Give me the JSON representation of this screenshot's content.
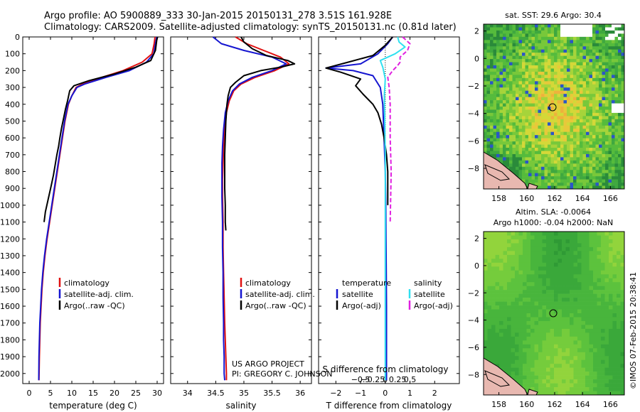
{
  "header": {
    "line1": "Argo profile: AO 5900889_333 30-Jan-2015 20150131_278 3.51S 161.928E",
    "line2": "Climatology: CARS2009. Satellite-adjusted climatology: synTS_20150131.nc (0.81d later)"
  },
  "depth_ticks": [
    "0",
    "100",
    "200",
    "300",
    "400",
    "500",
    "600",
    "700",
    "800",
    "900",
    "1000",
    "1100",
    "1200",
    "1300",
    "1400",
    "1500",
    "1600",
    "1700",
    "1800",
    "1900",
    "2000"
  ],
  "colors": {
    "climatology": "#e01010",
    "satellite": "#1515d0",
    "argo": "#000000",
    "sat_salinity": "#30e0f0",
    "argo_salinity": "#e020e0"
  },
  "chart_data": [
    {
      "type": "line",
      "panel": "temperature",
      "xlabel": "temperature (deg C)",
      "xlim": [
        -1.5,
        31.5
      ],
      "ylim": [
        2060,
        0
      ],
      "xticks": [
        0,
        5,
        10,
        15,
        20,
        25,
        30
      ],
      "legend": [
        "climatology",
        "satellite-adj. clim.",
        "Argo(..raw -QC)"
      ],
      "series": [
        {
          "name": "climatology",
          "x": [
            29.5,
            29.3,
            28.8,
            26.5,
            22,
            17,
            12.5,
            11,
            10,
            9.2,
            8.4,
            7.8,
            7.2,
            6.6,
            6,
            5.4,
            4.8,
            4.2,
            3.7,
            3.3,
            3,
            2.8,
            2.6,
            2.5,
            2.4,
            2.3
          ],
          "y": [
            0,
            40,
            100,
            150,
            200,
            240,
            280,
            300,
            350,
            400,
            500,
            600,
            700,
            800,
            900,
            1000,
            1100,
            1200,
            1300,
            1400,
            1500,
            1600,
            1700,
            1800,
            1900,
            2040
          ]
        },
        {
          "name": "satellite-adj. clim.",
          "x": [
            29.9,
            29.6,
            29.2,
            27.5,
            23.5,
            18,
            13,
            11.2,
            10,
            9.1,
            8.3,
            7.7,
            7.1,
            6.5,
            5.9,
            5.3,
            4.7,
            4.1,
            3.6,
            3.2,
            2.9,
            2.7,
            2.5,
            2.4,
            2.3,
            2.25
          ],
          "y": [
            0,
            40,
            100,
            150,
            200,
            240,
            280,
            300,
            350,
            400,
            500,
            600,
            700,
            800,
            900,
            1000,
            1100,
            1200,
            1300,
            1400,
            1500,
            1600,
            1700,
            1800,
            1900,
            2040
          ]
        },
        {
          "name": "Argo",
          "x": [
            30.1,
            29.9,
            29.6,
            28.5,
            25,
            20,
            14,
            10.5,
            9.5,
            9,
            8.5,
            8.1,
            7.6,
            7.2,
            6.9,
            6.5,
            6.1,
            5.7,
            5.2,
            4.5,
            3.8,
            3.5
          ],
          "y": [
            0,
            20,
            80,
            140,
            180,
            220,
            260,
            290,
            320,
            380,
            430,
            480,
            540,
            600,
            650,
            700,
            760,
            820,
            880,
            960,
            1040,
            1100
          ]
        }
      ]
    },
    {
      "type": "line",
      "panel": "salinity",
      "xlabel": "salinity",
      "xlim": [
        33.7,
        36.2
      ],
      "ylim": [
        2060,
        0
      ],
      "xticks": [
        34,
        34.5,
        35,
        35.5,
        36
      ],
      "xticklabels": [
        "34",
        "34.5",
        "35",
        "35.5",
        "36"
      ],
      "legend": [
        "climatology",
        "satellite-adj. clim.",
        "Argo(..raw -QC)"
      ],
      "series": [
        {
          "name": "climatology",
          "x": [
            34.85,
            35.05,
            35.35,
            35.65,
            35.8,
            35.55,
            35.2,
            34.95,
            34.82,
            34.74,
            34.69,
            34.66,
            34.64,
            34.63,
            34.62,
            34.62,
            34.63,
            34.63,
            34.64,
            34.65,
            34.66,
            34.67,
            34.68,
            34.69,
            34.69
          ],
          "y": [
            0,
            40,
            80,
            120,
            160,
            200,
            240,
            280,
            320,
            380,
            450,
            550,
            650,
            750,
            850,
            950,
            1100,
            1250,
            1400,
            1550,
            1700,
            1800,
            1900,
            2000,
            2040
          ]
        },
        {
          "name": "satellite-adj. clim.",
          "x": [
            34.45,
            34.6,
            35.0,
            35.5,
            35.75,
            35.5,
            35.15,
            34.92,
            34.8,
            34.72,
            34.67,
            34.64,
            34.62,
            34.61,
            34.61,
            34.61,
            34.62,
            34.62,
            34.63,
            34.63,
            34.64,
            34.64,
            34.65,
            34.65,
            34.66
          ],
          "y": [
            0,
            40,
            80,
            120,
            160,
            200,
            240,
            280,
            320,
            380,
            450,
            550,
            650,
            750,
            850,
            950,
            1100,
            1250,
            1400,
            1550,
            1700,
            1800,
            1900,
            2000,
            2040
          ]
        },
        {
          "name": "Argo",
          "x": [
            34.95,
            35.0,
            35.15,
            35.4,
            35.78,
            35.9,
            35.65,
            35.3,
            35.0,
            34.85,
            34.76,
            34.72,
            34.7,
            34.68,
            34.67,
            34.66,
            34.66,
            34.66,
            34.67,
            34.67,
            34.68
          ],
          "y": [
            0,
            30,
            70,
            110,
            140,
            160,
            180,
            200,
            230,
            270,
            300,
            350,
            400,
            500,
            600,
            700,
            800,
            900,
            1000,
            1100,
            1150
          ]
        }
      ]
    },
    {
      "type": "line",
      "panel": "difference",
      "xlabel": "T difference from climatology",
      "xlabel_top": "S difference from climatology",
      "xlim": [
        -2.7,
        3.0
      ],
      "ylim": [
        2060,
        0
      ],
      "xticks": [
        -2,
        -1,
        0,
        1,
        2
      ],
      "sticks": [
        -0.5,
        -0.25,
        0,
        0.25,
        0.5
      ],
      "sticklabels": [
        "−0.5",
        "−0.25",
        "0",
        "0.25",
        "0.5"
      ],
      "legend_temperature": [
        "temperature",
        "satellite",
        "Argo(-adj)"
      ],
      "legend_salinity": [
        "salinity",
        "satellite",
        "Argo(-adj)"
      ],
      "series": [
        {
          "name": "satellite",
          "x": [
            0.3,
            0.1,
            -0.3,
            -1.0,
            -2.4,
            -1.3,
            -0.5,
            -0.2,
            -0.1,
            -0.05,
            0.0,
            0.02,
            0.03,
            0.04,
            0.05,
            0.05,
            0.05,
            0.05
          ],
          "y": [
            0,
            40,
            100,
            160,
            185,
            200,
            230,
            300,
            400,
            600,
            800,
            1000,
            1200,
            1400,
            1600,
            1800,
            1950,
            2040
          ]
        },
        {
          "name": "Argo(-adj)",
          "x": [
            0.3,
            0.0,
            -0.5,
            -1.5,
            -2.4,
            -1.8,
            -1.0,
            -1.2,
            -0.9,
            -0.5,
            -0.3,
            -0.15,
            -0.05,
            0.05,
            0.1,
            0.1
          ],
          "y": [
            0,
            50,
            110,
            150,
            185,
            210,
            250,
            290,
            340,
            400,
            450,
            520,
            600,
            700,
            800,
            1000
          ]
        },
        {
          "name": "satellite salinity",
          "x": [
            0.25,
            0.28,
            0.4,
            0.2,
            -0.1,
            -0.05,
            0.0,
            -0.02,
            -0.01,
            0.0,
            0.0,
            0.0,
            0.0,
            0.0,
            0.0
          ],
          "y": [
            0,
            30,
            60,
            100,
            140,
            180,
            250,
            350,
            500,
            700,
            900,
            1200,
            1500,
            1800,
            2040
          ]
        },
        {
          "name": "Argo salinity",
          "x": [
            0.35,
            0.5,
            0.45,
            0.3,
            0.3,
            0.25,
            0.15,
            0.05,
            0.08,
            0.1,
            0.1,
            0.12,
            0.1
          ],
          "y": [
            0,
            40,
            80,
            120,
            150,
            170,
            200,
            240,
            300,
            400,
            600,
            800,
            1100
          ]
        }
      ]
    }
  ],
  "maps": {
    "sst": {
      "title": "sat. SST: 29.6 Argo: 30.4",
      "xticks": [
        "158",
        "160",
        "162",
        "164",
        "166"
      ],
      "yticks": [
        "2",
        "0",
        "−2",
        "−4",
        "−6",
        "−8"
      ]
    },
    "sla": {
      "title1": "Altim. SLA: -0.0064",
      "title2": "Argo h1000: -0.04 h2000: NaN",
      "xticks": [
        "158",
        "160",
        "162",
        "164",
        "166"
      ],
      "yticks": [
        "2",
        "0",
        "−2",
        "−4",
        "−6",
        "−8"
      ]
    }
  },
  "credits": {
    "project": "US ARGO PROJECT",
    "pi": "PI: GREGORY C. JOHNSON",
    "imos": "©IMOS 07-Feb-2015 20:38:41"
  }
}
